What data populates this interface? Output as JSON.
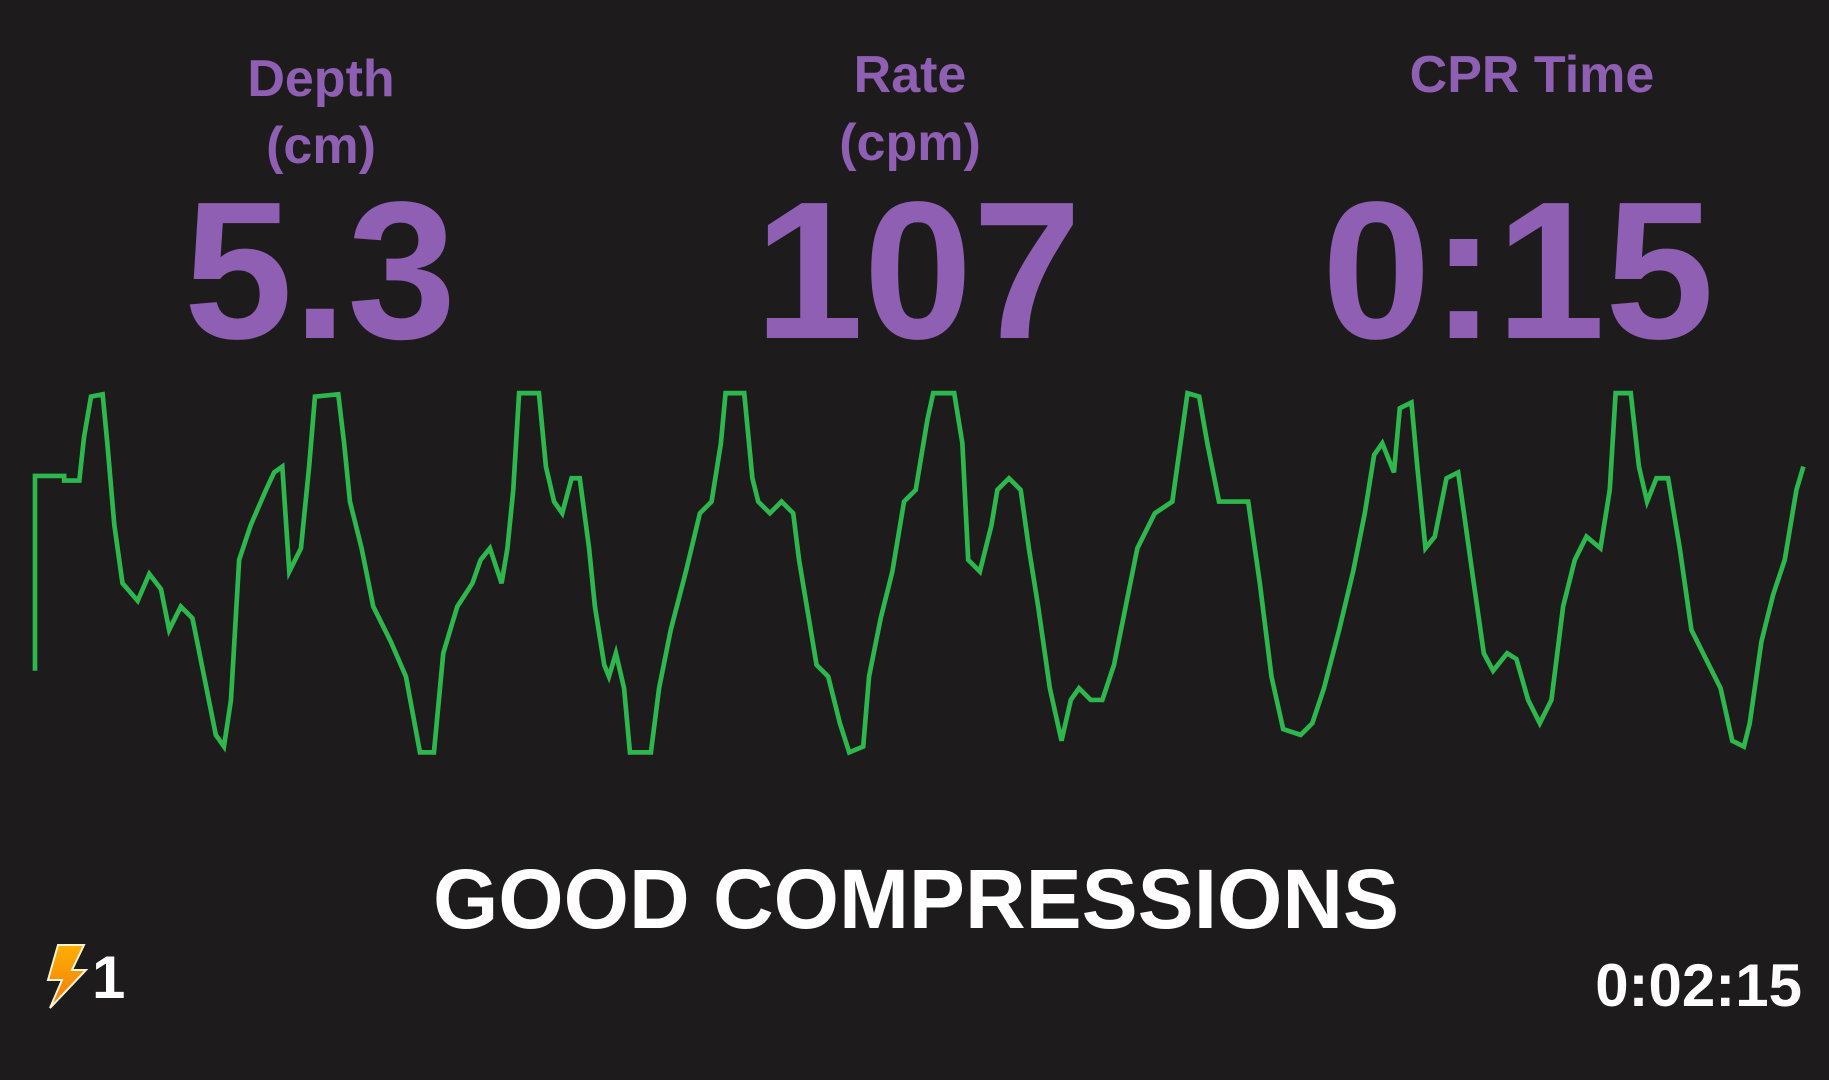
{
  "metrics": [
    {
      "label": "Depth",
      "unit": "(cm)",
      "value": "5.3"
    },
    {
      "label": "Rate",
      "unit": "(cpm)",
      "value": "107"
    },
    {
      "label": "CPR Time",
      "value": "0:15"
    }
  ],
  "status": "GOOD COMPRESSIONS",
  "shock_count": "1",
  "elapsed_time": "0:02:15"
}
